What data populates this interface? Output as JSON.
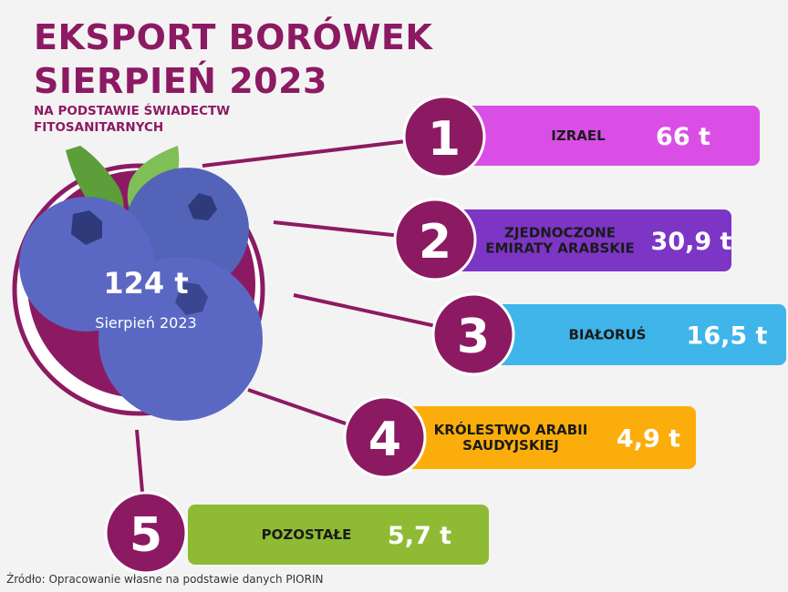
{
  "header": {
    "title_line1": "EKSPORT BORÓWEK",
    "title_line2": "SIERPIEŃ 2023",
    "subtitle": "NA PODSTAWIE ŚWIADECTW FITOSANITARNYCH"
  },
  "center": {
    "total": "124 t",
    "period": "Sierpień 2023"
  },
  "footer": {
    "source": "Źródło: Opracowanie własne na podstawie danych  PIORIN"
  },
  "colors": {
    "brand": "#8c1a63",
    "bar_izrael": "#d94fe6",
    "bar_uae": "#7d35c6",
    "bar_bialorus": "#3fb5ea",
    "bar_saudi": "#fbae0b",
    "bar_pozostale": "#8ebb33",
    "berry": "#5a68c3",
    "leaf": "#5c9e3a"
  },
  "chart_data": {
    "type": "bar",
    "title": "EKSPORT BORÓWEK SIERPIEŃ 2023",
    "subtitle": "NA PODSTAWIE ŚWIADECTW FITOSANITARNYCH",
    "unit": "t",
    "total": 124,
    "categories": [
      "IZRAEL",
      "ZJEDNOCZONE EMIRATY ARABSKIE",
      "BIAŁORUŚ",
      "KRÓLESTWO ARABII SAUDYJSKIEJ",
      "POZOSTAŁE"
    ],
    "ranks": [
      "1",
      "2",
      "3",
      "4",
      "5"
    ],
    "values": [
      66,
      30.9,
      16.5,
      4.9,
      5.7
    ],
    "value_labels": [
      "66 t",
      "30,9 t",
      "16,5 t",
      "4,9 t",
      "5,7 t"
    ],
    "label_lines": [
      [
        "IZRAEL"
      ],
      [
        "ZJEDNOCZONE",
        "EMIRATY ARABSKIE"
      ],
      [
        "BIAŁORUŚ"
      ],
      [
        "KRÓLESTWO ARABII",
        "SAUDYJSKIEJ"
      ],
      [
        "POZOSTAŁE"
      ]
    ]
  }
}
